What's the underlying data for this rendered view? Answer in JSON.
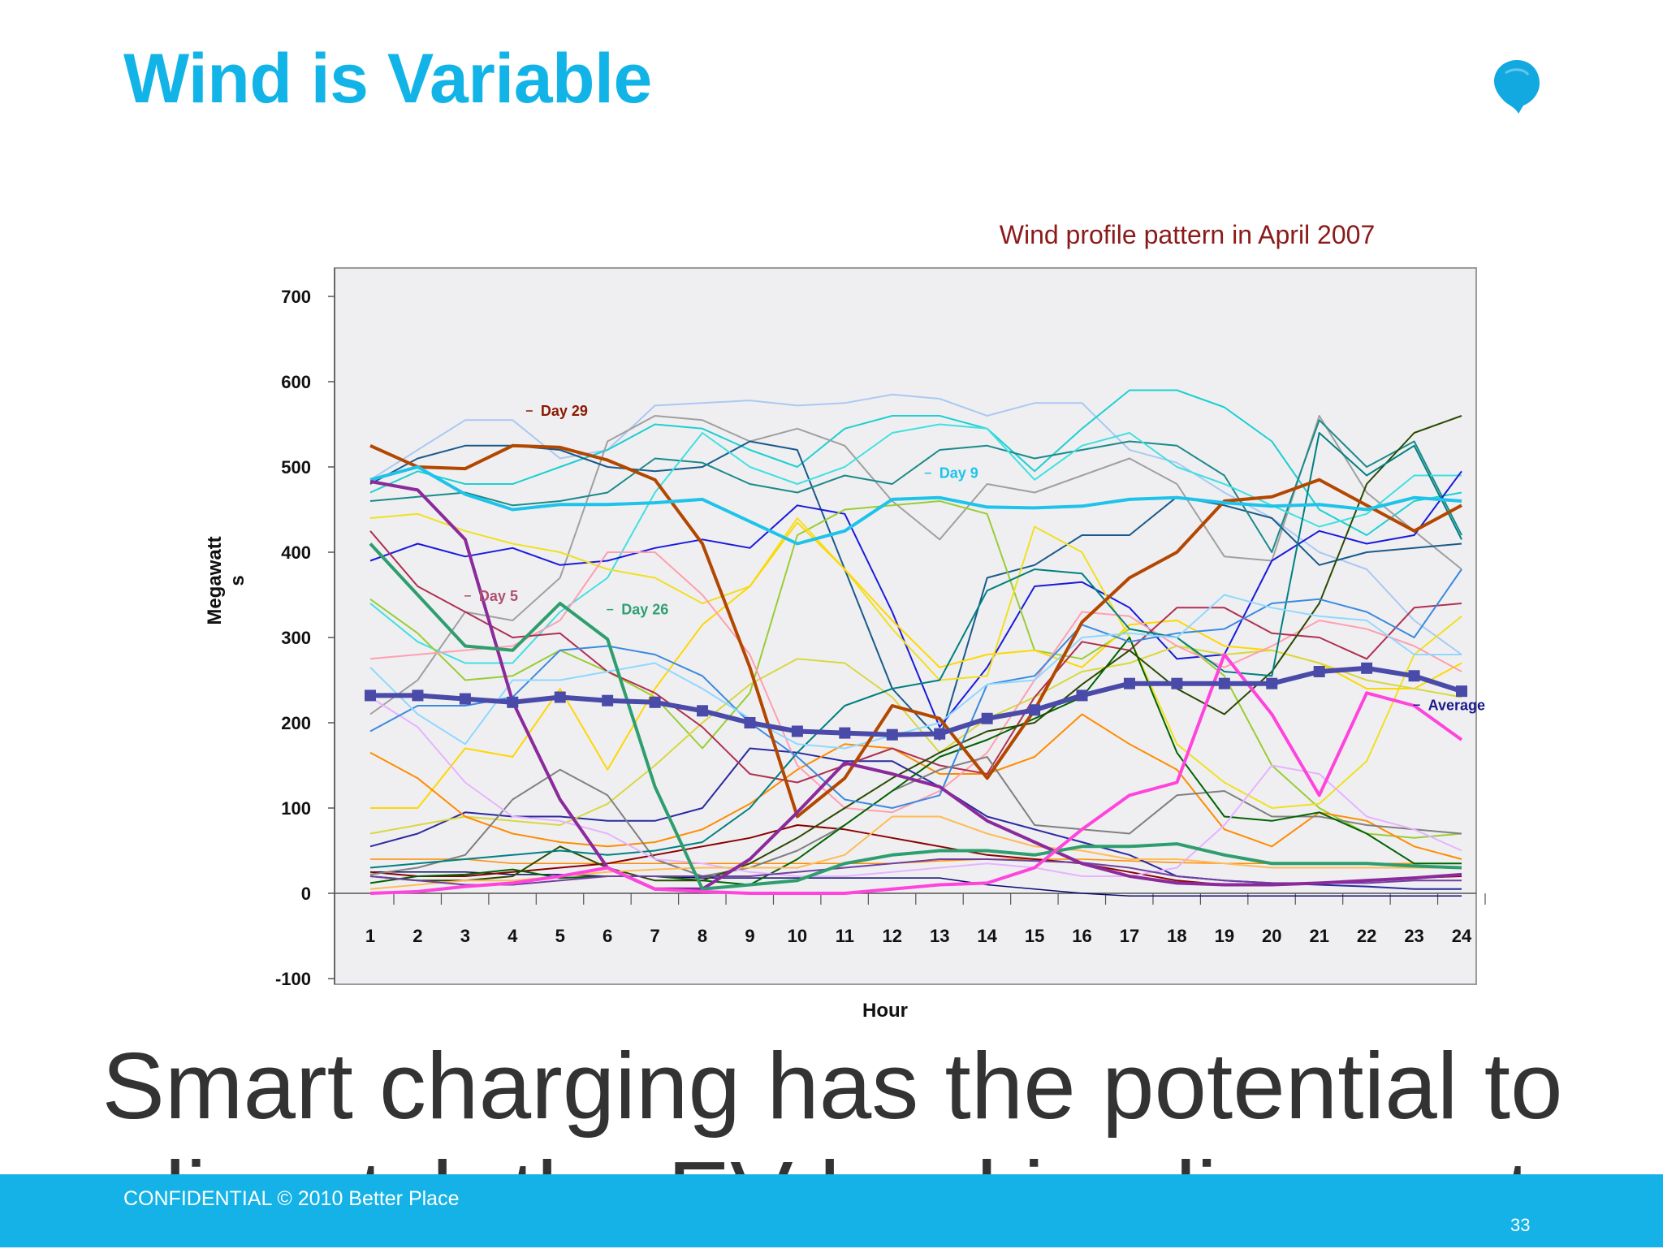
{
  "slide": {
    "title": "Wind is Variable",
    "footer": "CONFIDENTIAL © 2010 Better Place",
    "page_number": "33",
    "caption": "Smart charging has the potential to dispatch the EV load in alignment",
    "title_color": "#12b4e8",
    "footer_color": "#14b2e6",
    "logo_icon": "better-place-logo-icon"
  },
  "chart_data": {
    "type": "line",
    "title": "Wind profile pattern in April 2007",
    "title_color": "#8b1a1a",
    "xlabel": "Hour",
    "ylabel": "Megawatts",
    "ylim": [
      -100,
      700
    ],
    "yticks": [
      -100,
      0,
      100,
      200,
      300,
      400,
      500,
      600,
      700
    ],
    "x": [
      1,
      2,
      3,
      4,
      5,
      6,
      7,
      8,
      9,
      10,
      11,
      12,
      13,
      14,
      15,
      16,
      17,
      18,
      19,
      20,
      21,
      22,
      23,
      24
    ],
    "grid": false,
    "plot_background": "#efeff2",
    "annotations": [
      {
        "text": "Day 29",
        "color": "#8b1a00",
        "x": 4.9,
        "y": 560
      },
      {
        "text": "Day 9",
        "color": "#1ec3ea",
        "x": 13.3,
        "y": 487
      },
      {
        "text": "Day 5",
        "color": "#b05070",
        "x": 3.6,
        "y": 343
      },
      {
        "text": "Day 26",
        "color": "#30a070",
        "x": 6.6,
        "y": 327
      },
      {
        "text": "Average",
        "color": "#1a1a8c",
        "x": 23.6,
        "y": 215
      }
    ],
    "series": [
      {
        "name": "Average",
        "color": "#4a4aa8",
        "width": 6,
        "markers": true,
        "values": [
          232,
          232,
          228,
          224,
          230,
          226,
          224,
          214,
          200,
          190,
          188,
          186,
          187,
          205,
          215,
          232,
          246,
          246,
          246,
          246,
          260,
          264,
          255,
          237
        ]
      },
      {
        "name": "Day 29",
        "color": "#b34700",
        "width": 4,
        "values": [
          525,
          500,
          498,
          525,
          523,
          508,
          485,
          410,
          265,
          90,
          135,
          220,
          205,
          135,
          215,
          318,
          370,
          400,
          460,
          465,
          485,
          455,
          425,
          455
        ]
      },
      {
        "name": "Day 9",
        "color": "#1ec3ea",
        "width": 4,
        "values": [
          485,
          500,
          468,
          450,
          456,
          456,
          458,
          462,
          436,
          410,
          425,
          462,
          464,
          453,
          452,
          454,
          462,
          464,
          458,
          454,
          456,
          450,
          464,
          460
        ]
      },
      {
        "name": "Day 5",
        "color": "#8b2a9a",
        "width": 4,
        "values": [
          483,
          473,
          415,
          225,
          110,
          30,
          5,
          5,
          40,
          95,
          153,
          140,
          125,
          85,
          60,
          35,
          20,
          12,
          10,
          10,
          12,
          15,
          18,
          22
        ]
      },
      {
        "name": "Day 26",
        "color": "#2e9e6e",
        "width": 4,
        "values": [
          410,
          350,
          290,
          285,
          340,
          298,
          125,
          5,
          10,
          15,
          35,
          45,
          50,
          50,
          45,
          55,
          55,
          58,
          45,
          35,
          35,
          35,
          32,
          30
        ]
      },
      {
        "name": "",
        "color": "#ff44dd",
        "width": 4,
        "values": [
          0,
          2,
          8,
          12,
          20,
          30,
          5,
          2,
          0,
          0,
          0,
          5,
          10,
          12,
          30,
          75,
          115,
          130,
          280,
          210,
          115,
          235,
          220,
          180
        ]
      },
      {
        "name": "",
        "color": "#a9c9f2",
        "width": 2,
        "values": [
          485,
          520,
          555,
          555,
          510,
          520,
          572,
          575,
          578,
          572,
          575,
          585,
          580,
          560,
          575,
          575,
          520,
          505,
          470,
          440,
          400,
          380,
          320,
          280
        ]
      },
      {
        "name": "",
        "color": "#1ed0d0",
        "width": 2,
        "values": [
          470,
          495,
          480,
          480,
          500,
          520,
          550,
          545,
          520,
          500,
          545,
          560,
          560,
          545,
          495,
          545,
          590,
          590,
          570,
          530,
          450,
          420,
          460,
          470
        ]
      },
      {
        "name": "",
        "color": "#a0a0a0",
        "width": 2,
        "values": [
          210,
          250,
          330,
          320,
          370,
          530,
          560,
          555,
          530,
          545,
          525,
          460,
          415,
          480,
          470,
          490,
          510,
          480,
          395,
          390,
          560,
          470,
          425,
          380
        ]
      },
      {
        "name": "",
        "color": "#1a5a8a",
        "width": 2,
        "values": [
          480,
          510,
          525,
          525,
          520,
          500,
          495,
          500,
          530,
          520,
          380,
          240,
          180,
          370,
          385,
          420,
          420,
          465,
          455,
          440,
          385,
          400,
          405,
          410
        ]
      },
      {
        "name": "",
        "color": "#1a8a8a",
        "width": 2,
        "values": [
          460,
          465,
          470,
          455,
          460,
          470,
          510,
          505,
          480,
          470,
          490,
          480,
          520,
          525,
          510,
          520,
          530,
          525,
          490,
          400,
          555,
          500,
          530,
          420
        ]
      },
      {
        "name": "",
        "color": "#40e0e0",
        "width": 2,
        "values": [
          340,
          295,
          270,
          270,
          330,
          370,
          470,
          540,
          500,
          480,
          500,
          540,
          550,
          545,
          485,
          525,
          540,
          500,
          480,
          455,
          430,
          445,
          490,
          490
        ]
      },
      {
        "name": "",
        "color": "#1a1adc",
        "width": 2,
        "values": [
          390,
          410,
          395,
          405,
          385,
          390,
          405,
          415,
          405,
          455,
          445,
          330,
          195,
          265,
          360,
          365,
          335,
          275,
          280,
          390,
          425,
          410,
          420,
          495
        ]
      },
      {
        "name": "",
        "color": "#2a2aa0",
        "width": 2,
        "values": [
          55,
          70,
          95,
          90,
          90,
          85,
          85,
          100,
          170,
          165,
          155,
          155,
          125,
          90,
          75,
          60,
          45,
          20,
          15,
          12,
          10,
          8,
          5,
          5
        ]
      },
      {
        "name": "",
        "color": "#9acd32",
        "width": 2,
        "values": [
          345,
          305,
          250,
          255,
          285,
          260,
          230,
          170,
          235,
          420,
          450,
          455,
          460,
          445,
          285,
          275,
          310,
          300,
          255,
          150,
          100,
          70,
          65,
          70
        ]
      },
      {
        "name": "",
        "color": "#f0e020",
        "width": 2,
        "values": [
          440,
          445,
          425,
          410,
          400,
          380,
          370,
          340,
          360,
          440,
          380,
          310,
          250,
          255,
          430,
          400,
          300,
          175,
          130,
          100,
          105,
          155,
          280,
          325
        ]
      },
      {
        "name": "",
        "color": "#ffd700",
        "width": 2,
        "values": [
          100,
          100,
          170,
          160,
          240,
          145,
          240,
          315,
          360,
          435,
          380,
          320,
          265,
          280,
          285,
          265,
          315,
          320,
          290,
          285,
          270,
          240,
          240,
          270
        ]
      },
      {
        "name": "",
        "color": "#d8d840",
        "width": 2,
        "values": [
          70,
          80,
          90,
          85,
          80,
          105,
          150,
          200,
          245,
          275,
          270,
          230,
          165,
          205,
          230,
          260,
          270,
          290,
          280,
          285,
          270,
          250,
          240,
          230
        ]
      },
      {
        "name": "",
        "color": "#ff8c00",
        "width": 2,
        "values": [
          165,
          135,
          90,
          70,
          60,
          55,
          60,
          75,
          105,
          145,
          175,
          170,
          140,
          140,
          160,
          210,
          175,
          145,
          75,
          55,
          95,
          85,
          55,
          40
        ]
      },
      {
        "name": "",
        "color": "#8b0000",
        "width": 2,
        "values": [
          25,
          20,
          20,
          25,
          30,
          35,
          45,
          55,
          65,
          80,
          75,
          65,
          55,
          45,
          40,
          35,
          25,
          15,
          10,
          10,
          12,
          15,
          18,
          20
        ]
      },
      {
        "name": "",
        "color": "#ff8c00",
        "width": 1.5,
        "values": [
          40,
          40,
          40,
          35,
          35,
          35,
          35,
          35,
          35,
          35,
          35,
          35,
          38,
          40,
          40,
          40,
          38,
          36,
          35,
          35,
          35,
          35,
          35,
          35
        ]
      },
      {
        "name": "",
        "color": "#ff9fb0",
        "width": 2,
        "values": [
          275,
          280,
          285,
          290,
          320,
          400,
          400,
          350,
          280,
          150,
          100,
          95,
          120,
          165,
          250,
          330,
          325,
          290,
          265,
          290,
          320,
          310,
          290,
          260
        ]
      },
      {
        "name": "",
        "color": "#b03050",
        "width": 2,
        "values": [
          425,
          360,
          330,
          300,
          305,
          260,
          235,
          195,
          140,
          130,
          150,
          170,
          150,
          140,
          230,
          295,
          285,
          335,
          335,
          305,
          300,
          275,
          335,
          340
        ]
      },
      {
        "name": "",
        "color": "#808080",
        "width": 2,
        "values": [
          22,
          30,
          45,
          110,
          145,
          115,
          40,
          20,
          30,
          50,
          80,
          120,
          145,
          160,
          80,
          75,
          70,
          115,
          120,
          90,
          90,
          80,
          75,
          70
        ]
      },
      {
        "name": "",
        "color": "#006400",
        "width": 2,
        "values": [
          12,
          20,
          22,
          28,
          18,
          20,
          20,
          15,
          10,
          40,
          80,
          120,
          160,
          180,
          205,
          230,
          300,
          165,
          90,
          85,
          95,
          70,
          35,
          35
        ]
      },
      {
        "name": "",
        "color": "#2a4a00",
        "width": 2,
        "values": [
          20,
          15,
          15,
          20,
          55,
          30,
          15,
          15,
          35,
          65,
          100,
          135,
          165,
          190,
          200,
          245,
          285,
          240,
          210,
          260,
          340,
          480,
          540,
          560
        ]
      },
      {
        "name": "",
        "color": "#008080",
        "width": 2,
        "values": [
          30,
          35,
          40,
          45,
          50,
          45,
          50,
          60,
          100,
          165,
          220,
          240,
          250,
          355,
          380,
          375,
          310,
          300,
          260,
          255,
          540,
          490,
          525,
          415
        ]
      },
      {
        "name": "",
        "color": "#e6b3ff",
        "width": 2,
        "values": [
          230,
          195,
          130,
          90,
          85,
          70,
          40,
          35,
          25,
          20,
          20,
          25,
          30,
          35,
          30,
          20,
          20,
          30,
          80,
          150,
          140,
          90,
          75,
          50
        ]
      },
      {
        "name": "",
        "color": "#3a8ae0",
        "width": 2,
        "values": [
          190,
          220,
          220,
          230,
          285,
          290,
          280,
          255,
          200,
          160,
          110,
          100,
          115,
          245,
          255,
          315,
          295,
          305,
          310,
          340,
          345,
          330,
          300,
          380
        ]
      },
      {
        "name": "",
        "color": "#8fd8ff",
        "width": 2,
        "values": [
          265,
          210,
          175,
          250,
          250,
          260,
          270,
          240,
          205,
          175,
          170,
          185,
          200,
          245,
          250,
          300,
          305,
          300,
          350,
          335,
          325,
          320,
          280,
          280
        ]
      },
      {
        "name": "",
        "color": "#ffbb55",
        "width": 2,
        "values": [
          5,
          10,
          15,
          15,
          20,
          25,
          28,
          30,
          30,
          30,
          45,
          90,
          90,
          70,
          55,
          50,
          40,
          40,
          35,
          30,
          30,
          30,
          30,
          30
        ]
      },
      {
        "name": "",
        "color": "#7040a0",
        "width": 2,
        "values": [
          20,
          15,
          10,
          10,
          15,
          20,
          20,
          20,
          20,
          25,
          30,
          35,
          40,
          40,
          38,
          36,
          30,
          20,
          15,
          12,
          12,
          12,
          15,
          15
        ]
      },
      {
        "name": "",
        "color": "#0a0a6a",
        "width": 1.5,
        "values": [
          25,
          25,
          25,
          22,
          22,
          20,
          20,
          18,
          18,
          18,
          18,
          18,
          18,
          10,
          5,
          0,
          -3,
          -3,
          -3,
          -3,
          -3,
          -3,
          -3,
          -3
        ]
      }
    ]
  }
}
